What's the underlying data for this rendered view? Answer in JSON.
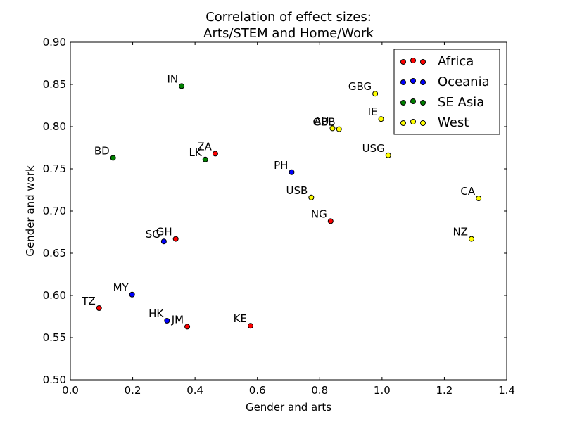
{
  "chart_data": {
    "type": "scatter",
    "title": "Correlation of effect sizes:",
    "subtitle": "Arts/STEM and Home/Work",
    "xlabel": "Gender and arts",
    "ylabel": "Gender and work",
    "xlim": [
      0.0,
      1.4
    ],
    "ylim": [
      0.5,
      0.9
    ],
    "xticks": [
      "0.0",
      "0.2",
      "0.4",
      "0.6",
      "0.8",
      "1.0",
      "1.2",
      "1.4"
    ],
    "yticks": [
      "0.50",
      "0.55",
      "0.60",
      "0.65",
      "0.70",
      "0.75",
      "0.80",
      "0.85",
      "0.90"
    ],
    "grid": false,
    "legend_position": "top-right",
    "series": [
      {
        "name": "Africa",
        "color": "#ff0000",
        "points": [
          {
            "label": "ZA",
            "x": 0.465,
            "y": 0.768
          },
          {
            "label": "GH",
            "x": 0.338,
            "y": 0.667
          },
          {
            "label": "TZ",
            "x": 0.092,
            "y": 0.585
          },
          {
            "label": "JM",
            "x": 0.375,
            "y": 0.563
          },
          {
            "label": "KE",
            "x": 0.578,
            "y": 0.564
          },
          {
            "label": "NG",
            "x": 0.835,
            "y": 0.688
          }
        ]
      },
      {
        "name": "Oceania",
        "color": "#0000ff",
        "points": [
          {
            "label": "PH",
            "x": 0.71,
            "y": 0.746
          },
          {
            "label": "SG",
            "x": 0.3,
            "y": 0.664
          },
          {
            "label": "MY",
            "x": 0.198,
            "y": 0.601
          },
          {
            "label": "HK",
            "x": 0.31,
            "y": 0.57
          }
        ]
      },
      {
        "name": "SE Asia",
        "color": "#008000",
        "points": [
          {
            "label": "IN",
            "x": 0.357,
            "y": 0.848
          },
          {
            "label": "BD",
            "x": 0.137,
            "y": 0.763
          },
          {
            "label": "LK",
            "x": 0.433,
            "y": 0.761
          }
        ]
      },
      {
        "name": "West",
        "color": "#ffff00",
        "points": [
          {
            "label": "GBG",
            "x": 0.978,
            "y": 0.839
          },
          {
            "label": "IE",
            "x": 0.997,
            "y": 0.809
          },
          {
            "label": "GBB",
            "x": 0.862,
            "y": 0.797
          },
          {
            "label": "AU",
            "x": 0.841,
            "y": 0.798
          },
          {
            "label": "USG",
            "x": 1.02,
            "y": 0.766
          },
          {
            "label": "USB",
            "x": 0.773,
            "y": 0.716
          },
          {
            "label": "CA",
            "x": 1.31,
            "y": 0.715
          },
          {
            "label": "NZ",
            "x": 1.287,
            "y": 0.667
          }
        ]
      }
    ]
  }
}
